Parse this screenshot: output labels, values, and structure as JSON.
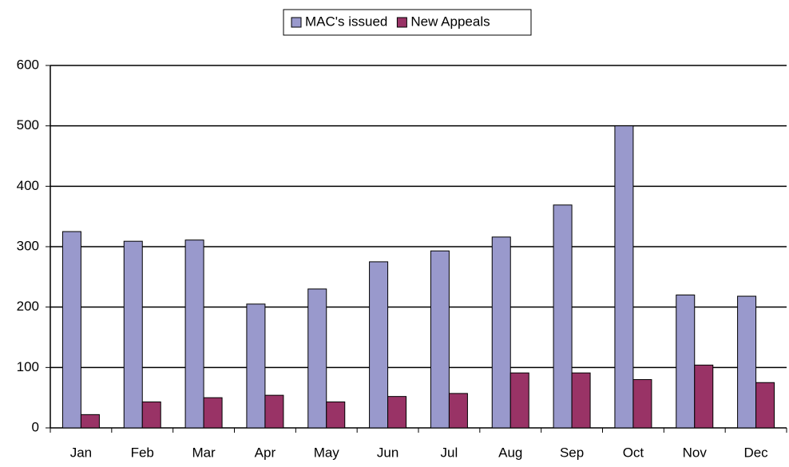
{
  "chart_data": {
    "type": "bar",
    "categories": [
      "Jan",
      "Feb",
      "Mar",
      "Apr",
      "May",
      "Jun",
      "Jul",
      "Aug",
      "Sep",
      "Oct",
      "Nov",
      "Dec"
    ],
    "series": [
      {
        "name": "MAC's issued",
        "color": "#9999cc",
        "values": [
          325,
          309,
          311,
          205,
          230,
          275,
          293,
          316,
          369,
          500,
          220,
          218
        ]
      },
      {
        "name": "New Appeals",
        "color": "#993366",
        "values": [
          22,
          43,
          50,
          54,
          43,
          52,
          57,
          91,
          91,
          80,
          104,
          75
        ]
      }
    ],
    "ylim": [
      0,
      600
    ],
    "yticks": [
      0,
      100,
      200,
      300,
      400,
      500,
      600
    ],
    "grid": true,
    "legend": "top"
  }
}
